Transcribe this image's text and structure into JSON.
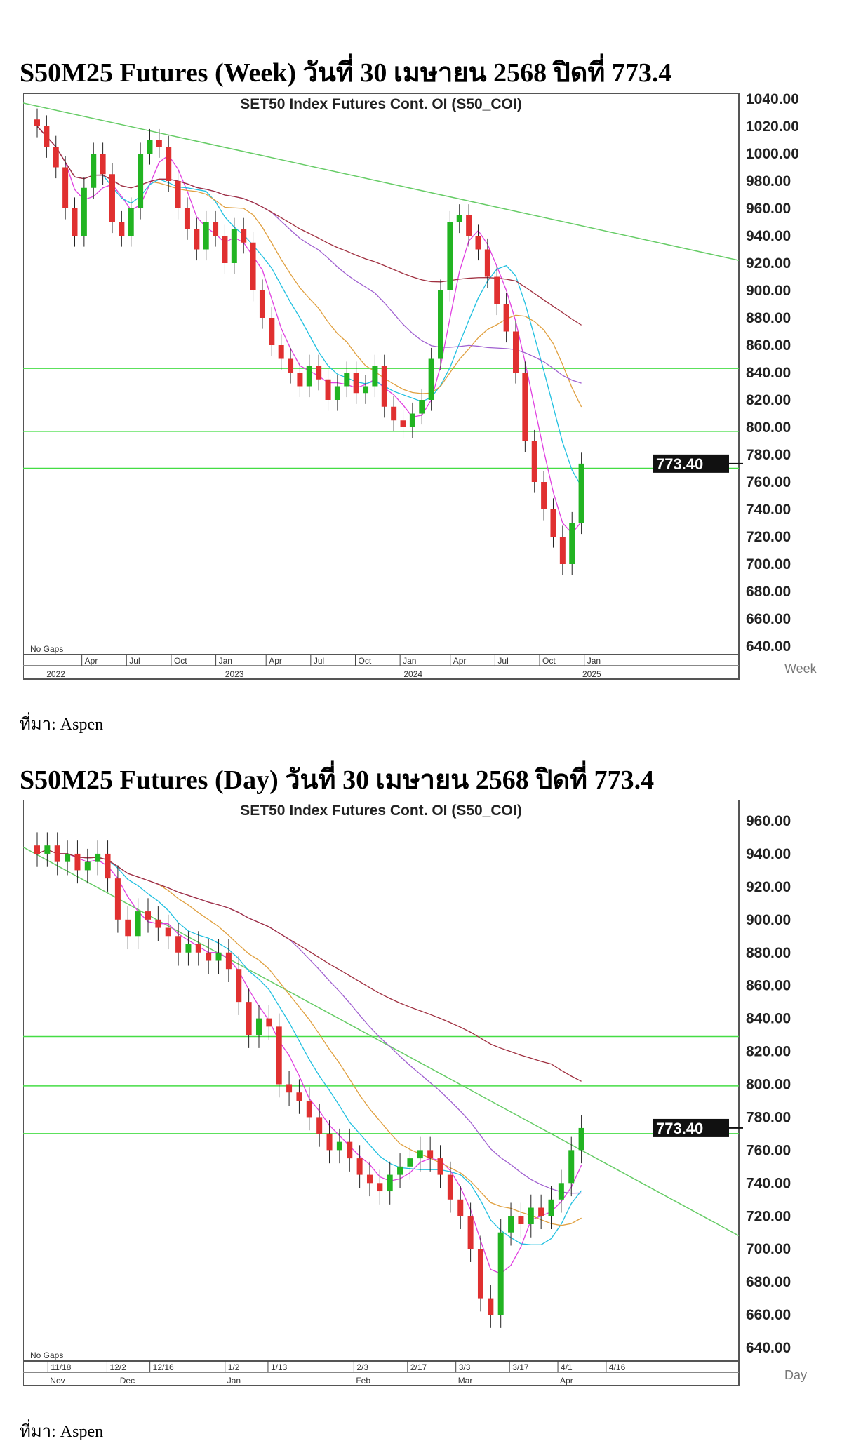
{
  "week": {
    "heading": "S50M25 Futures (Week) วันที่ 30 เมษายน 2568 ปิดที่ 773.4",
    "source": "ที่มา: Aspen"
  },
  "day": {
    "heading": "S50M25 Futures (Day) วันที่ 30 เมษายน 2568 ปิดที่ 773.4",
    "source": "ที่มา: Aspen"
  },
  "chart_data": [
    {
      "type": "candlestick",
      "title": "SET50 Index Futures Cont. OI (S50_COI)",
      "period_label": "Week",
      "note": "No Gaps",
      "last_price": "773.40",
      "ylim": [
        640,
        1040
      ],
      "yticks": [
        "640.00",
        "660.00",
        "680.00",
        "700.00",
        "720.00",
        "740.00",
        "760.00",
        "780.00",
        "800.00",
        "820.00",
        "840.00",
        "860.00",
        "880.00",
        "900.00",
        "920.00",
        "940.00",
        "960.00",
        "980.00",
        "1000.00",
        "1020.00",
        "1040.00"
      ],
      "xticks": [
        "Apr",
        "Jul",
        "Oct",
        "Jan",
        "Apr",
        "Jul",
        "Oct",
        "Jan",
        "Apr",
        "Jul",
        "Oct",
        "Jan"
      ],
      "years": [
        "2022",
        "2023",
        "2024",
        "2025"
      ],
      "closes": [
        1020,
        1005,
        990,
        960,
        940,
        975,
        1000,
        985,
        950,
        940,
        960,
        1000,
        1010,
        1005,
        980,
        960,
        945,
        930,
        950,
        940,
        920,
        945,
        935,
        900,
        880,
        860,
        850,
        840,
        830,
        845,
        835,
        820,
        830,
        840,
        825,
        830,
        845,
        815,
        805,
        800,
        810,
        820,
        850,
        900,
        950,
        955,
        940,
        930,
        910,
        890,
        870,
        840,
        790,
        760,
        740,
        720,
        700,
        730,
        773.4
      ],
      "hlines": [
        843,
        797,
        770
      ],
      "trendline": [
        1037,
        922
      ],
      "colors": {
        "up": "#22b422",
        "down": "#e03030",
        "hline": "#44dd44"
      }
    },
    {
      "type": "candlestick",
      "title": "SET50 Index Futures Cont. OI (S50_COI)",
      "period_label": "Day",
      "note": "No Gaps",
      "last_price": "773.40",
      "ylim": [
        640,
        960
      ],
      "yticks": [
        "640.00",
        "660.00",
        "680.00",
        "700.00",
        "720.00",
        "740.00",
        "760.00",
        "780.00",
        "800.00",
        "820.00",
        "840.00",
        "860.00",
        "880.00",
        "900.00",
        "920.00",
        "940.00",
        "960.00"
      ],
      "xticks": [
        "11/18",
        "12/2",
        "12/16",
        "1/2",
        "1/13",
        "2/3",
        "2/17",
        "3/3",
        "3/17",
        "4/1",
        "4/16"
      ],
      "months": [
        "Nov",
        "Dec",
        "Jan",
        "Feb",
        "Mar",
        "Apr"
      ],
      "closes": [
        940,
        945,
        935,
        940,
        930,
        935,
        940,
        925,
        900,
        890,
        905,
        900,
        895,
        890,
        880,
        885,
        880,
        875,
        880,
        870,
        850,
        830,
        840,
        835,
        800,
        795,
        790,
        780,
        770,
        760,
        765,
        755,
        745,
        740,
        735,
        745,
        750,
        755,
        760,
        755,
        745,
        730,
        720,
        700,
        670,
        660,
        710,
        720,
        715,
        725,
        720,
        730,
        740,
        760,
        773.4
      ],
      "hlines": [
        829,
        799,
        770
      ],
      "trendline": [
        944,
        708
      ],
      "colors": {
        "up": "#22b422",
        "down": "#e03030",
        "hline": "#44dd44"
      }
    }
  ]
}
